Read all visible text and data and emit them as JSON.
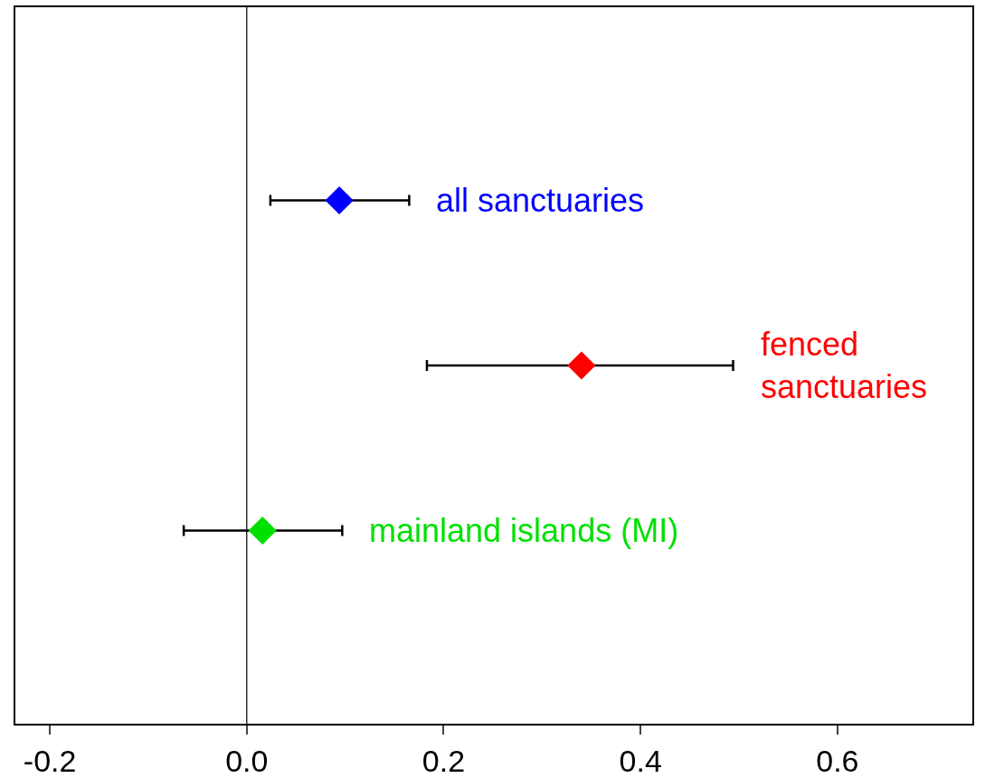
{
  "chart_data": {
    "type": "scatter",
    "orientation": "horizontal",
    "categories": [
      null,
      null,
      null
    ],
    "series": [
      {
        "name": "all sanctuaries",
        "color": "#0000ff",
        "values": [
          0.094,
          null,
          null
        ],
        "errors": [
          [
            0.024,
            0.165
          ],
          null,
          null
        ]
      },
      {
        "name": "fenced sanctuaries",
        "color": "#ff0000",
        "values": [
          null,
          0.34,
          null
        ],
        "errors": [
          null,
          [
            0.183,
            0.494
          ],
          null
        ]
      },
      {
        "name": "mainland islands (MI)",
        "color": "#00e000",
        "values": [
          null,
          null,
          0.016
        ],
        "errors": [
          null,
          null,
          [
            -0.064,
            0.097
          ]
        ]
      }
    ],
    "xlim": [
      -0.235,
      0.737
    ],
    "xticks": [
      {
        "value": -0.2,
        "label": "-0.2"
      },
      {
        "value": 0,
        "label": "0.0"
      },
      {
        "value": 0.2,
        "label": "0.2"
      },
      {
        "value": 0.4,
        "label": "0.4"
      },
      {
        "value": 0.6,
        "label": "0.6"
      }
    ],
    "ref_lines": [
      {
        "axis": "x",
        "value": 0
      }
    ],
    "marker": "diamond",
    "grid": false,
    "legend": false
  }
}
